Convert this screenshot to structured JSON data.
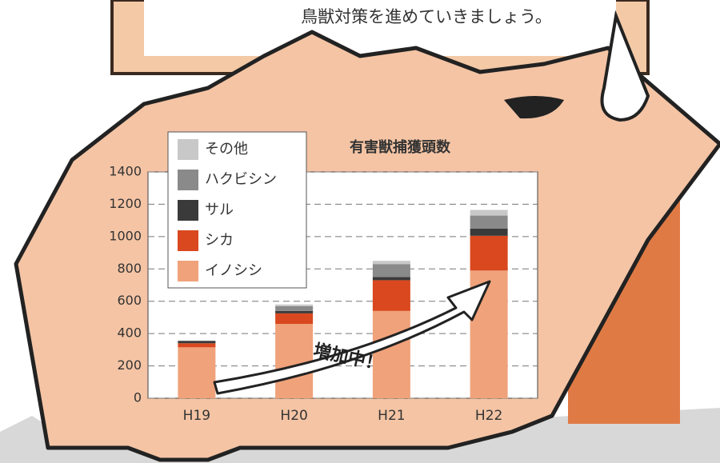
{
  "header": {
    "message": "鳥獣対策を進めていきましょう。"
  },
  "chart_data": {
    "type": "bar",
    "stacked": true,
    "title": "有害獣捕獲頭数",
    "categories": [
      "H19",
      "H20",
      "H21",
      "H22"
    ],
    "series": [
      {
        "name": "イノシシ",
        "color": "#f0a27a",
        "values": [
          315,
          460,
          540,
          790
        ]
      },
      {
        "name": "シカ",
        "color": "#d9481e",
        "values": [
          25,
          65,
          190,
          215
        ]
      },
      {
        "name": "サル",
        "color": "#3a3a3a",
        "values": [
          15,
          15,
          20,
          45
        ]
      },
      {
        "name": "ハクビシン",
        "color": "#8a8a8a",
        "values": [
          0,
          30,
          80,
          80
        ]
      },
      {
        "name": "その他",
        "color": "#c8c8c8",
        "values": [
          0,
          10,
          20,
          35
        ]
      }
    ],
    "ylim": [
      0,
      1400
    ],
    "yticks": [
      0,
      200,
      400,
      600,
      800,
      1000,
      1200,
      1400
    ],
    "grid": true,
    "annotation": "増加中！"
  }
}
